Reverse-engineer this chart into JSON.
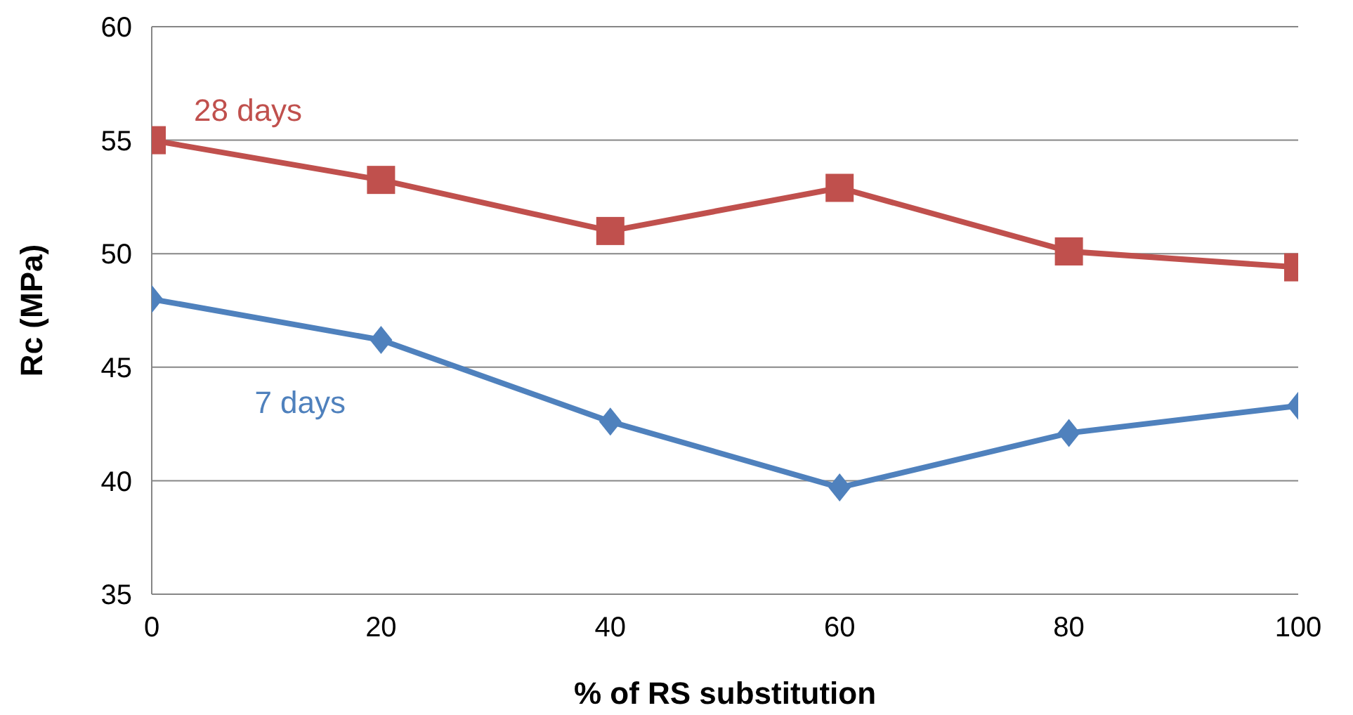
{
  "chart_data": {
    "type": "line",
    "xlabel": "% of RS substitution",
    "ylabel": "Rc (MPa)",
    "x": [
      0,
      20,
      40,
      60,
      80,
      100
    ],
    "series": [
      {
        "name": "28 days",
        "color": "#c0504d",
        "marker": "square",
        "values": [
          55.0,
          53.25,
          51.0,
          52.9,
          50.1,
          49.4
        ]
      },
      {
        "name": "7 days",
        "color": "#4f81bd",
        "marker": "diamond",
        "values": [
          48.0,
          46.2,
          42.6,
          39.7,
          42.1,
          43.3
        ]
      }
    ],
    "xlim": [
      0,
      100
    ],
    "xticks": [
      0,
      20,
      40,
      60,
      80,
      100
    ],
    "ylim": [
      35,
      60
    ],
    "yticks": [
      35,
      40,
      45,
      50,
      55,
      60
    ],
    "grid": "y",
    "legend": false,
    "line_style": "solid"
  }
}
